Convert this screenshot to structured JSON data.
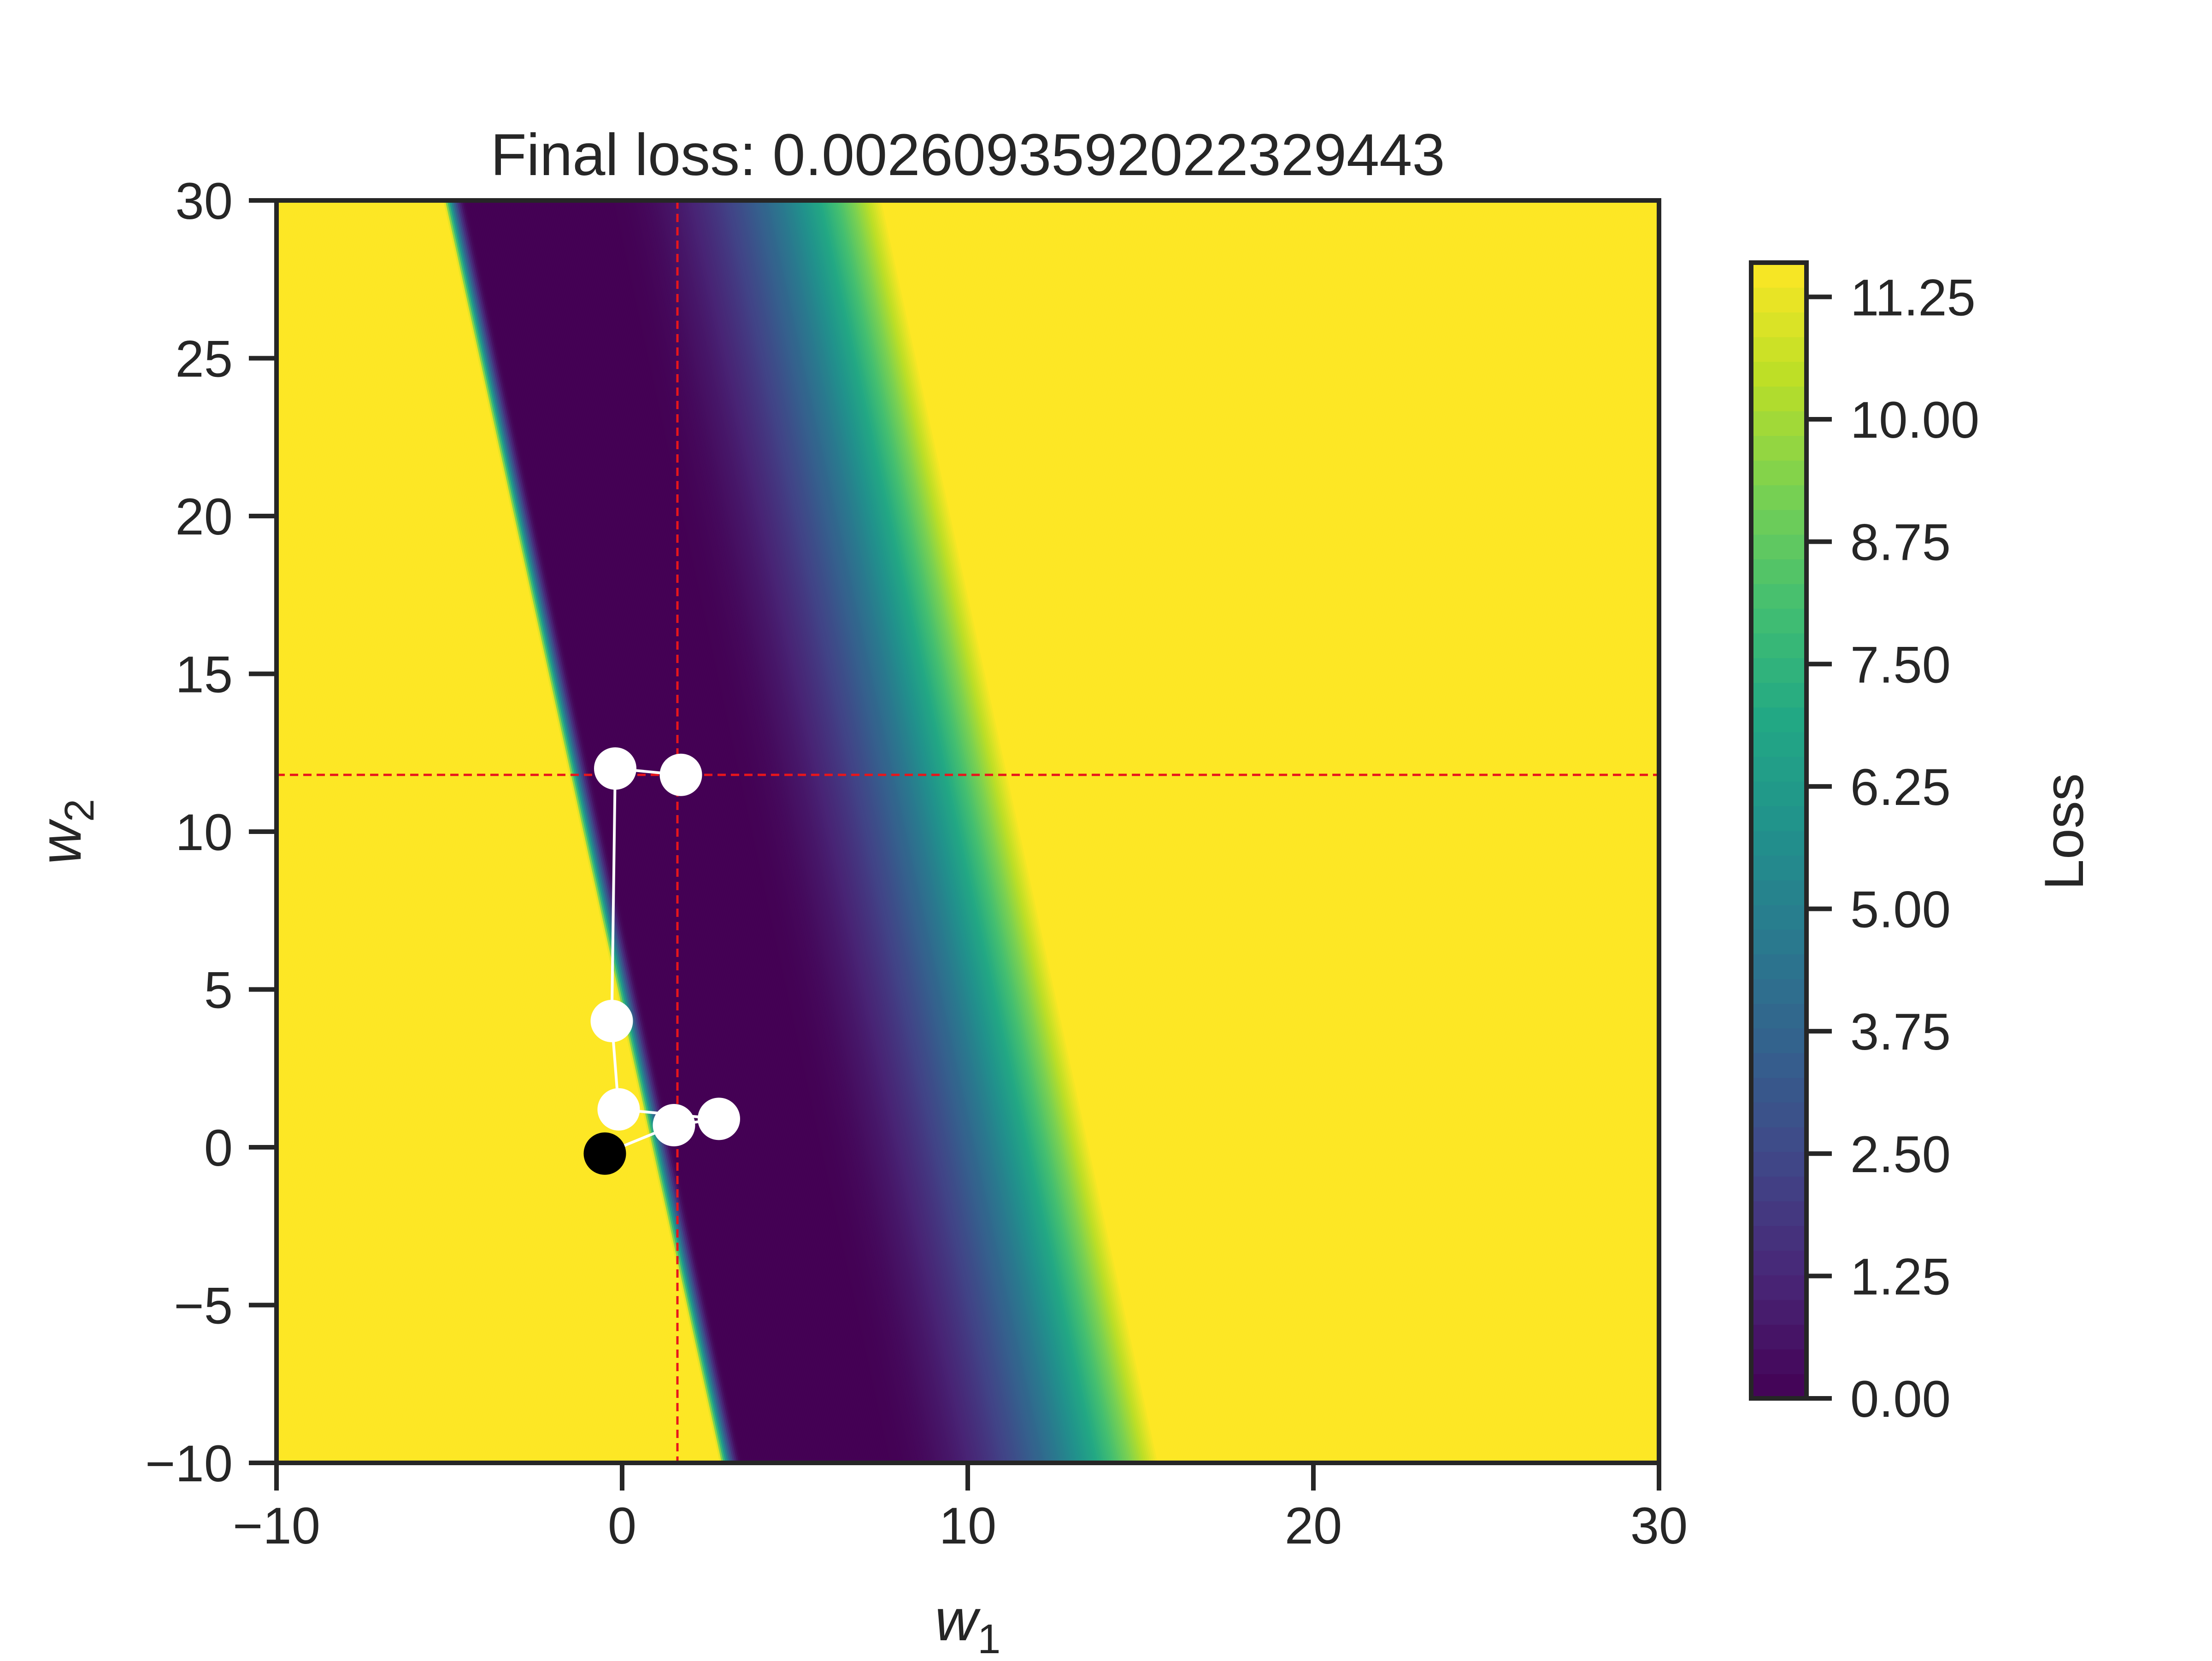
{
  "chart_data": {
    "type": "contour",
    "title": "Final loss: 0.0026093592022329443",
    "xlabel": "w",
    "xlabel_sub": "1",
    "ylabel": "w",
    "ylabel_sub": "2",
    "xlim": [
      -10,
      30
    ],
    "ylim": [
      -10,
      30
    ],
    "xticks": [
      -10,
      0,
      10,
      20,
      30
    ],
    "yticks": [
      -10,
      -5,
      0,
      5,
      10,
      15,
      20,
      25,
      30
    ],
    "xtick_labels": [
      "−10",
      "0",
      "10",
      "20",
      "30"
    ],
    "ytick_labels": [
      "−10",
      "−5",
      "0",
      "5",
      "10",
      "15",
      "20",
      "25",
      "30"
    ],
    "colormap": "viridis",
    "colorbar": {
      "label": "Loss",
      "range": [
        0,
        11.6
      ],
      "ticks": [
        0.0,
        1.25,
        2.5,
        3.75,
        5.0,
        6.25,
        7.5,
        8.75,
        10.0,
        11.25
      ],
      "tick_labels": [
        "0.00",
        "1.25",
        "2.50",
        "3.75",
        "5.00",
        "6.25",
        "7.50",
        "8.75",
        "10.00",
        "11.25"
      ]
    },
    "target": {
      "w1": 1.6,
      "w2": 11.8,
      "color": "#e8161b"
    },
    "start_point": {
      "w1": -0.5,
      "w2": -0.2,
      "color": "#000000"
    },
    "trajectory": [
      {
        "w1": -0.5,
        "w2": -0.2
      },
      {
        "w1": 1.5,
        "w2": 0.7
      },
      {
        "w1": 2.8,
        "w2": 0.9
      },
      {
        "w1": -0.1,
        "w2": 1.2
      },
      {
        "w1": -0.3,
        "w2": 4.0
      },
      {
        "w1": -0.2,
        "w2": 12.0
      },
      {
        "w1": 1.7,
        "w2": 11.8
      }
    ],
    "trajectory_color": "#ffffff"
  }
}
